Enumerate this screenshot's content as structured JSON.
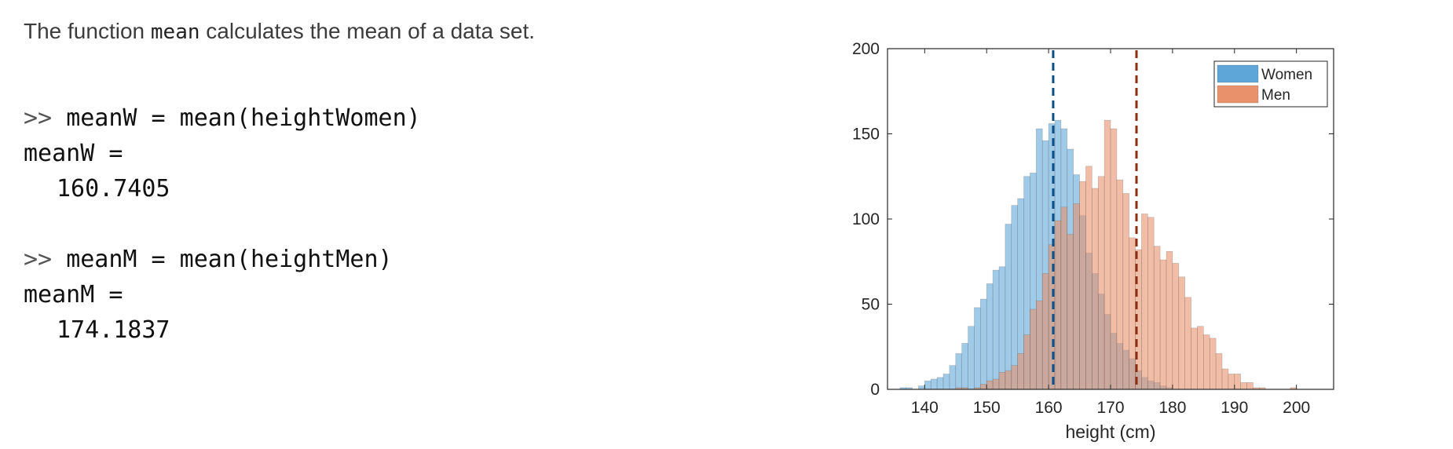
{
  "intro": {
    "before": "The function",
    "code": "mean",
    "after": "calculates the mean of a data set."
  },
  "console": {
    "prompt": ">>",
    "blocks": [
      {
        "command": "meanW = mean(heightWomen)",
        "result_label": "meanW =",
        "result_value": "160.7405"
      },
      {
        "command": "meanM = mean(heightMen)",
        "result_label": "meanM =",
        "result_value": "174.1837"
      }
    ]
  },
  "chart_data": {
    "type": "bar",
    "title": "",
    "xlabel": "height (cm)",
    "ylabel": "",
    "xlim": [
      134,
      206
    ],
    "ylim": [
      0,
      200
    ],
    "xticks": [
      140,
      150,
      160,
      170,
      180,
      190,
      200
    ],
    "yticks": [
      0,
      50,
      100,
      150,
      200
    ],
    "grid": false,
    "legend": "top-right",
    "bin_width": 1,
    "series": [
      {
        "name": "Women",
        "color": "#5fa6d8",
        "bin_start": 136,
        "values": [
          1,
          1,
          0,
          2,
          5,
          6,
          7,
          9,
          14,
          21,
          27,
          37,
          48,
          53,
          62,
          70,
          72,
          97,
          108,
          112,
          125,
          127,
          153,
          146,
          156,
          158,
          153,
          141,
          126,
          102,
          80,
          68,
          56,
          44,
          33,
          27,
          23,
          18,
          11,
          7,
          5,
          4,
          2,
          1
        ]
      },
      {
        "name": "Men",
        "color": "#e8916b",
        "bin_start": 145,
        "values": [
          1,
          1,
          0,
          1,
          3,
          5,
          6,
          10,
          11,
          14,
          21,
          32,
          47,
          52,
          68,
          85,
          99,
          107,
          91,
          109,
          122,
          131,
          118,
          125,
          158,
          153,
          123,
          115,
          89,
          82,
          103,
          101,
          84,
          76,
          81,
          74,
          66,
          54,
          36,
          37,
          32,
          30,
          21,
          12,
          9,
          9,
          4,
          4,
          1,
          1,
          0,
          0,
          0,
          0,
          1
        ]
      }
    ],
    "mean_lines": [
      {
        "series": "Women",
        "value": 160.7405,
        "color": "#0b4f8a"
      },
      {
        "series": "Men",
        "value": 174.1837,
        "color": "#8c2d12"
      }
    ]
  }
}
